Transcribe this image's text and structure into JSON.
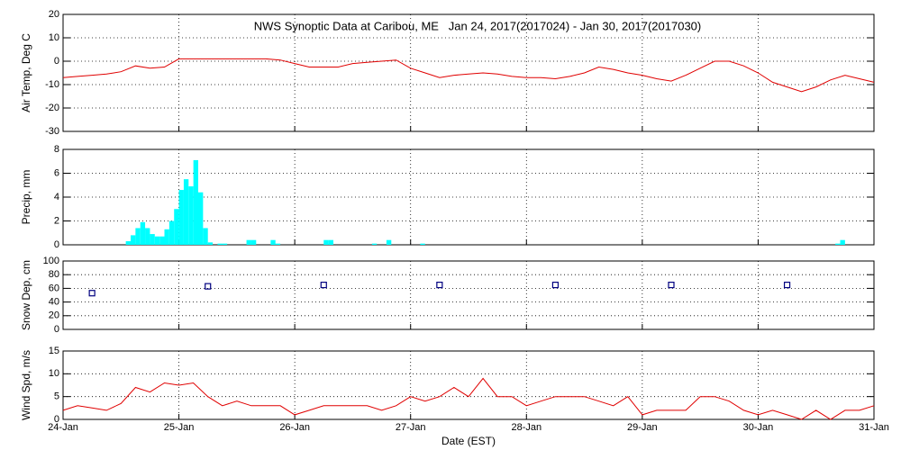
{
  "chart_data": [
    {
      "type": "line",
      "title": "NWS Synoptic Data at Caribou, ME   Jan 24, 2017(2017024) - Jan 30, 2017(2017030)",
      "ylabel": "Air Temp, Deg C",
      "color": "#e00000",
      "x": [
        0,
        3,
        6,
        9,
        12,
        15,
        18,
        21,
        24,
        27,
        30,
        33,
        36,
        39,
        42,
        45,
        48,
        51,
        54,
        57,
        60,
        63,
        66,
        69,
        72,
        75,
        78,
        81,
        84,
        87,
        90,
        93,
        96,
        99,
        102,
        105,
        108,
        111,
        114,
        117,
        120,
        123,
        126,
        129,
        132,
        135,
        138,
        141,
        144,
        147,
        150,
        153,
        156,
        159,
        162,
        165,
        168
      ],
      "values": [
        -7,
        -6.5,
        -6,
        -5.5,
        -4.5,
        -2,
        -3,
        -2.5,
        1,
        1,
        1,
        1,
        1,
        1,
        1,
        0.5,
        -1,
        -2.5,
        -2.5,
        -2.5,
        -1,
        -0.5,
        0,
        0.5,
        -3,
        -5,
        -7,
        -6,
        -5.5,
        -5,
        -5.5,
        -6.5,
        -7,
        -7,
        -7.5,
        -6.5,
        -5,
        -2.5,
        -3.5,
        -5,
        -6,
        -7.5,
        -8.5,
        -6,
        -3,
        0,
        0,
        -2,
        -5,
        -9,
        -11,
        -13,
        -11,
        -8,
        -6,
        -7.5,
        -9
      ],
      "xlim": [
        0,
        168
      ],
      "xticks": [
        {
          "value": 0,
          "label": "24-Jan"
        },
        {
          "value": 24,
          "label": "25-Jan"
        },
        {
          "value": 48,
          "label": "26-Jan"
        },
        {
          "value": 72,
          "label": "27-Jan"
        },
        {
          "value": 96,
          "label": "28-Jan"
        },
        {
          "value": 120,
          "label": "29-Jan"
        },
        {
          "value": 144,
          "label": "30-Jan"
        },
        {
          "value": 168,
          "label": "31-Jan"
        }
      ],
      "ylim": [
        -30,
        20
      ],
      "yticks": [
        -30,
        -20,
        -10,
        0,
        10,
        20
      ],
      "grid": true
    },
    {
      "type": "bar",
      "ylabel": "Precip, mm",
      "color": "#00ffff",
      "x": [
        13,
        14,
        15,
        16,
        17,
        18,
        19,
        20,
        21,
        22,
        23,
        24,
        25,
        26,
        27,
        28,
        29,
        30,
        32,
        33,
        38,
        39,
        43,
        44,
        54,
        55,
        64,
        67,
        74,
        160,
        161
      ],
      "values": [
        0.3,
        0.8,
        1.4,
        1.9,
        1.4,
        0.9,
        0.7,
        0.7,
        1.3,
        2.0,
        3.0,
        4.6,
        5.5,
        4.9,
        7.1,
        4.4,
        1.4,
        0.2,
        0.1,
        0.1,
        0.4,
        0.4,
        0.4,
        0.1,
        0.4,
        0.4,
        0.1,
        0.4,
        0.1,
        0.1,
        0.4
      ],
      "xlim": [
        0,
        168
      ],
      "xticks": [
        {
          "value": 0,
          "label": "24-Jan"
        },
        {
          "value": 24,
          "label": "25-Jan"
        },
        {
          "value": 48,
          "label": "26-Jan"
        },
        {
          "value": 72,
          "label": "27-Jan"
        },
        {
          "value": 96,
          "label": "28-Jan"
        },
        {
          "value": 120,
          "label": "29-Jan"
        },
        {
          "value": 144,
          "label": "30-Jan"
        },
        {
          "value": 168,
          "label": "31-Jan"
        }
      ],
      "ylim": [
        0,
        8
      ],
      "yticks": [
        0,
        2,
        4,
        6,
        8
      ],
      "grid": true
    },
    {
      "type": "scatter",
      "ylabel": "Snow Dep, cm",
      "color": "#000080",
      "x": [
        6,
        30,
        54,
        78,
        102,
        126,
        150
      ],
      "values": [
        53,
        63,
        65,
        65,
        65,
        65,
        65
      ],
      "xlim": [
        0,
        168
      ],
      "xticks": [
        {
          "value": 0,
          "label": "24-Jan"
        },
        {
          "value": 24,
          "label": "25-Jan"
        },
        {
          "value": 48,
          "label": "26-Jan"
        },
        {
          "value": 72,
          "label": "27-Jan"
        },
        {
          "value": 96,
          "label": "28-Jan"
        },
        {
          "value": 120,
          "label": "29-Jan"
        },
        {
          "value": 144,
          "label": "30-Jan"
        },
        {
          "value": 168,
          "label": "31-Jan"
        }
      ],
      "ylim": [
        0,
        100
      ],
      "yticks": [
        0,
        20,
        40,
        60,
        80,
        100
      ],
      "grid": true
    },
    {
      "type": "line",
      "ylabel": "Wind Spd, m/s",
      "xlabel": "Date (EST)",
      "color": "#e00000",
      "x": [
        0,
        3,
        6,
        9,
        12,
        15,
        18,
        21,
        24,
        27,
        30,
        33,
        36,
        39,
        42,
        45,
        48,
        51,
        54,
        57,
        60,
        63,
        66,
        69,
        72,
        75,
        78,
        81,
        84,
        87,
        90,
        93,
        96,
        99,
        102,
        105,
        108,
        111,
        114,
        117,
        120,
        123,
        126,
        129,
        132,
        135,
        138,
        141,
        144,
        147,
        150,
        153,
        156,
        159,
        162,
        165,
        168
      ],
      "values": [
        2,
        3,
        2.5,
        2,
        3.5,
        7,
        6,
        8,
        7.5,
        8,
        5,
        3,
        4,
        3,
        3,
        3,
        1,
        2,
        3,
        3,
        3,
        3,
        2,
        3,
        5,
        4,
        5,
        7,
        5,
        9,
        5,
        5,
        3,
        4,
        5,
        5,
        5,
        4,
        3,
        5,
        1,
        2,
        2,
        2,
        5,
        5,
        4,
        2,
        1,
        2,
        1,
        0,
        2,
        0,
        2,
        2,
        3
      ],
      "xlim": [
        0,
        168
      ],
      "xticks": [
        {
          "value": 0,
          "label": "24-Jan"
        },
        {
          "value": 24,
          "label": "25-Jan"
        },
        {
          "value": 48,
          "label": "26-Jan"
        },
        {
          "value": 72,
          "label": "27-Jan"
        },
        {
          "value": 96,
          "label": "28-Jan"
        },
        {
          "value": 120,
          "label": "29-Jan"
        },
        {
          "value": 144,
          "label": "30-Jan"
        },
        {
          "value": 168,
          "label": "31-Jan"
        }
      ],
      "ylim": [
        0,
        15
      ],
      "yticks": [
        0,
        5,
        10,
        15
      ],
      "grid": true
    }
  ]
}
